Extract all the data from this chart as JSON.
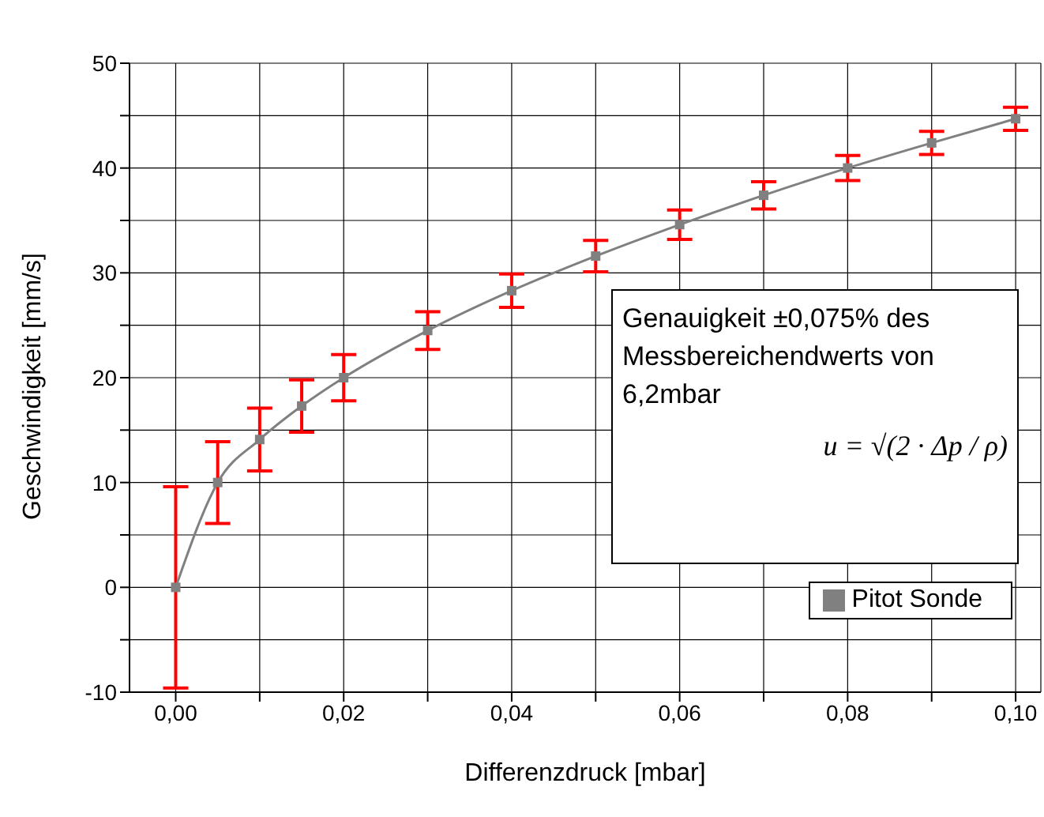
{
  "chart_data": {
    "type": "line",
    "xlabel": "Differenzdruck [mbar]",
    "ylabel": "Geschwindigkeit [mm/s]",
    "x": [
      0,
      0.005,
      0.01,
      0.015,
      0.02,
      0.03,
      0.04,
      0.05,
      0.06,
      0.07,
      0.08,
      0.09,
      0.1
    ],
    "series": [
      {
        "name": "Pitot Sonde",
        "color": "#808080",
        "values": [
          0,
          10,
          14.1,
          17.3,
          20,
          24.5,
          28.3,
          31.6,
          34.6,
          37.4,
          40,
          42.4,
          44.7
        ],
        "errors": [
          9.6,
          3.9,
          3,
          2.5,
          2.2,
          1.8,
          1.6,
          1.5,
          1.4,
          1.3,
          1.2,
          1.1,
          1.1
        ]
      }
    ],
    "xlim": [
      -0.0055,
      0.103
    ],
    "xticks": [
      {
        "value": 0,
        "label": "0,00"
      },
      {
        "value": 0.01,
        "label": null
      },
      {
        "value": 0.02,
        "label": "0,02"
      },
      {
        "value": 0.03,
        "label": null
      },
      {
        "value": 0.04,
        "label": "0,04"
      },
      {
        "value": 0.05,
        "label": null
      },
      {
        "value": 0.06,
        "label": "0,06"
      },
      {
        "value": 0.07,
        "label": null
      },
      {
        "value": 0.08,
        "label": "0,08"
      },
      {
        "value": 0.09,
        "label": null
      },
      {
        "value": 0.1,
        "label": "0,10"
      }
    ],
    "ylim": [
      -10,
      50
    ],
    "yticks": [
      -10,
      {
        "value": -5,
        "label": null
      },
      0,
      {
        "value": 5,
        "label": null
      },
      10,
      {
        "value": 15,
        "label": null
      },
      20,
      {
        "value": 25,
        "label": null
      },
      30,
      {
        "value": 35,
        "label": null
      },
      40,
      {
        "value": 45,
        "label": null
      },
      50
    ],
    "grid": true,
    "legend": "bottom right",
    "marker": "square",
    "line_style": "solid",
    "annotations": [
      "Genauigkeit ±0,075% des Messbereichendwerts von 6,2mbar",
      "u = √(2 · Δp / ρ)"
    ]
  }
}
